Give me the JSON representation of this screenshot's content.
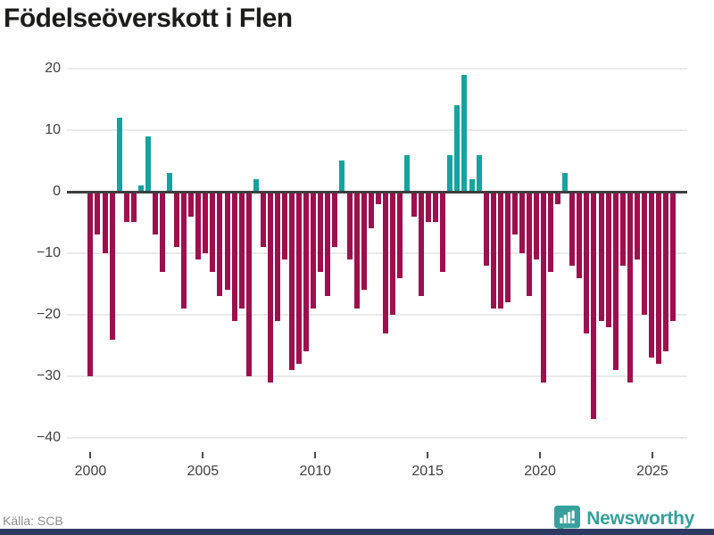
{
  "title": "Födelseöverskott i Flen",
  "source": {
    "label": "Källa: SCB"
  },
  "branding": {
    "name": "Newsworthy",
    "icon": "bar-chart-speech-bubble-icon"
  },
  "colors": {
    "positive_bar": "#15a3a0",
    "negative_bar": "#9e0f4e",
    "zero_line": "#3d3d3d",
    "gridline": "#e9e9e9",
    "title_text": "#1c1c1a",
    "axis_text": "#3f3f3f",
    "source_text": "#8c8c8c",
    "brand_teal": "#35a09c",
    "bottom_border": "#2f3a64"
  },
  "chart_data": {
    "type": "bar",
    "title": "Födelseöverskott i Flen",
    "xlabel": "",
    "ylabel": "",
    "grid": true,
    "legend": "none",
    "xlim": [
      1998.95,
      2026.55
    ],
    "ylim": [
      -41,
      21
    ],
    "x_ticks": [
      2000,
      2005,
      2010,
      2015,
      2020,
      2025
    ],
    "x_tick_labels": [
      "2000",
      "2005",
      "2010",
      "2015",
      "2020",
      "2025"
    ],
    "y_ticks": [
      20,
      10,
      0,
      -10,
      -20,
      -30,
      -40
    ],
    "y_tick_labels": [
      "20",
      "10",
      "0",
      "−10",
      "−20",
      "−30",
      "−40"
    ],
    "x_start": 2000.0,
    "x_step": 0.32,
    "values": [
      -30,
      -7,
      -10,
      -24,
      12,
      -5,
      -5,
      1,
      9,
      -7,
      -13,
      3,
      -9,
      -19,
      -4,
      -11,
      -10,
      -13,
      -17,
      -16,
      -21,
      -19,
      -30,
      2,
      -9,
      -31,
      -21,
      -11,
      -29,
      -28,
      -26,
      -19,
      -13,
      -17,
      -9,
      5,
      -11,
      -19,
      -16,
      -6,
      -2,
      -23,
      -20,
      -14,
      6,
      -4,
      -17,
      -5,
      -5,
      -13,
      6,
      14,
      19,
      2,
      6,
      -12,
      -19,
      -19,
      -18,
      -7,
      -10,
      -17,
      -11,
      -31,
      -13,
      -2,
      3,
      -12,
      -14,
      -23,
      -37,
      -21,
      -22,
      -29,
      -12,
      -31,
      -11,
      -20,
      -27,
      -28,
      -26,
      -21
    ]
  }
}
